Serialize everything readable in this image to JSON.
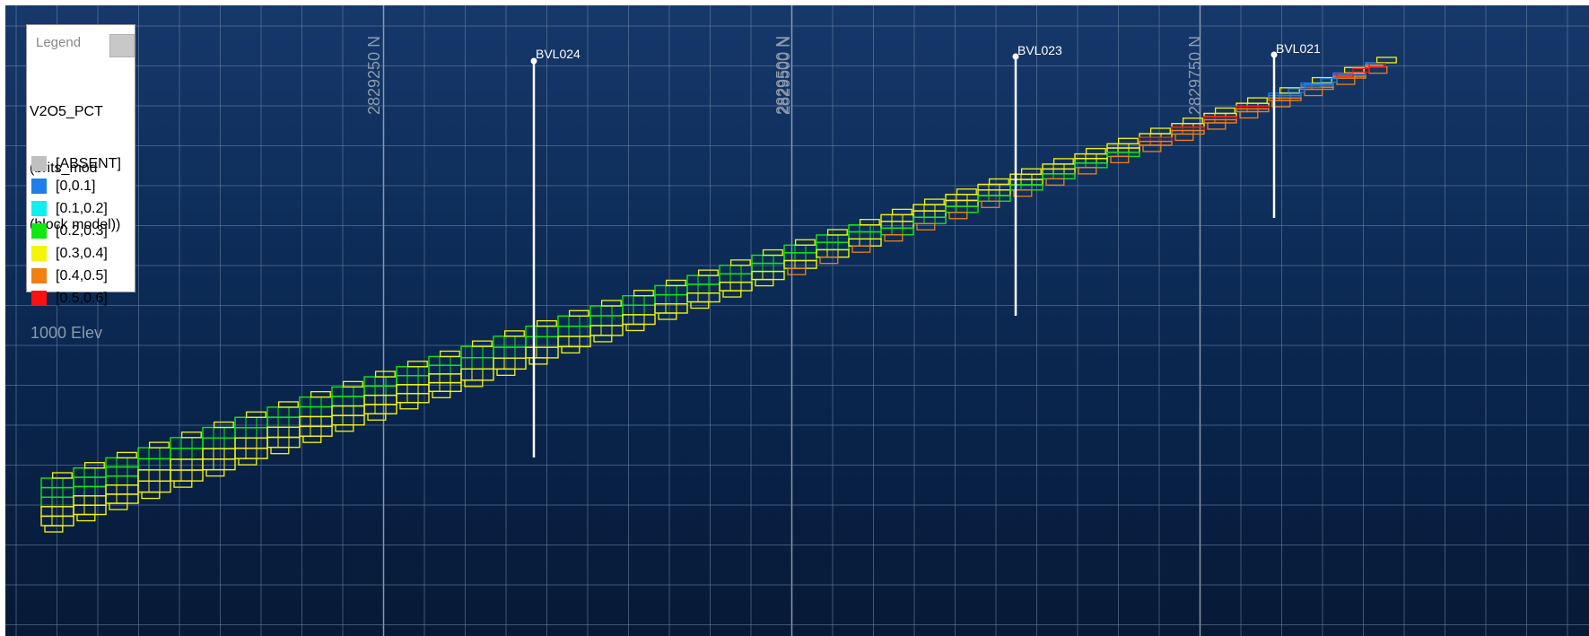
{
  "legend": {
    "title": "Legend",
    "attribute_lines": [
      "V2O5_PCT",
      "(brits_mod",
      "(block model))"
    ],
    "items": [
      {
        "label": "[ABSENT]",
        "color": "#c0c0c0"
      },
      {
        "label": "[0,0.1]",
        "color": "#1e7fe8"
      },
      {
        "label": "[0.1,0.2]",
        "color": "#11efef"
      },
      {
        "label": "[0.2,0.3]",
        "color": "#10e810"
      },
      {
        "label": "[0.3,0.4]",
        "color": "#f5f50a"
      },
      {
        "label": "[0.4,0.5]",
        "color": "#f08012"
      },
      {
        "label": "[0.5,0.6]",
        "color": "#ff1010"
      }
    ]
  },
  "grid_labels": {
    "northing_1": "2829250 N",
    "northing_2": "2829500 N",
    "northing_3": "2829750 N",
    "elevation": "1000 Elev"
  },
  "drillholes": [
    {
      "name": "BVL024"
    },
    {
      "name": "BVL023"
    },
    {
      "name": "BVL021"
    }
  ],
  "colors": {
    "background_top": "#16386a",
    "background_bottom": "#071a36",
    "drillhole": "#ffffff"
  }
}
